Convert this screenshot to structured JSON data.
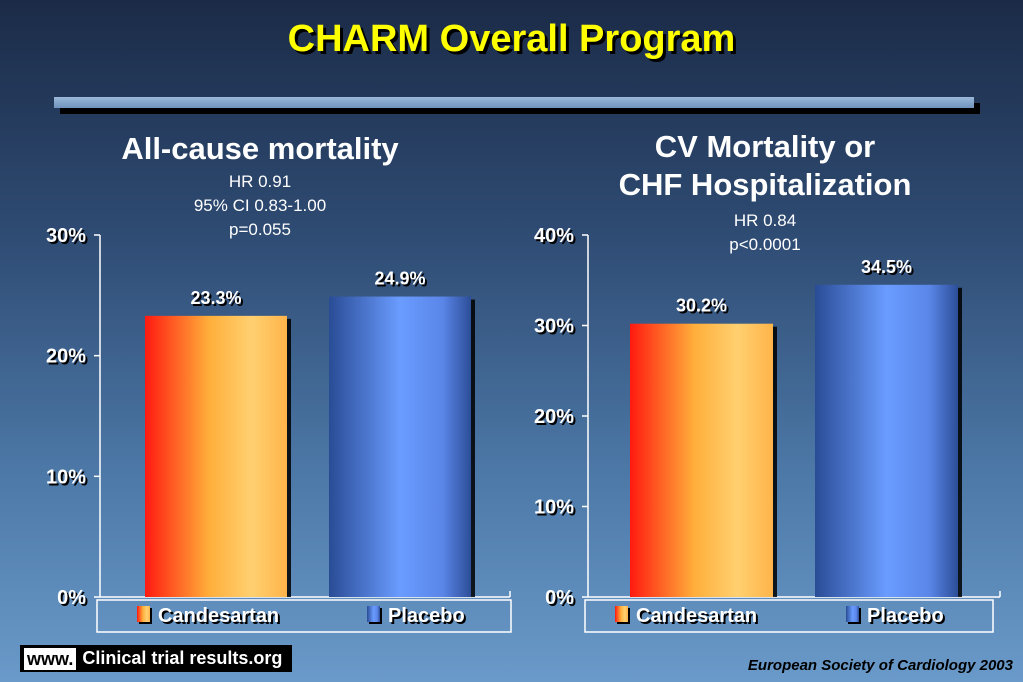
{
  "title": "CHARM Overall Program",
  "panels": [
    {
      "title_lines": [
        "All-cause mortality"
      ],
      "stats": [
        "HR 0.91",
        "95% CI 0.83-1.00",
        "p=0.055"
      ]
    },
    {
      "title_lines": [
        "CV Mortality or",
        "CHF Hospitalization"
      ],
      "stats": [
        "HR 0.84",
        "p<0.0001"
      ]
    }
  ],
  "chart_data": [
    {
      "type": "bar",
      "title": "All-cause mortality",
      "categories": [
        "Candesartan",
        "Placebo"
      ],
      "values": [
        23.3,
        24.9
      ],
      "value_labels": [
        "23.3%",
        "24.9%"
      ],
      "ylim": [
        0,
        30
      ],
      "yticks": [
        "0%",
        "10%",
        "20%",
        "30%"
      ],
      "legend": [
        "Candesartan",
        "Placebo"
      ],
      "legend_position": "bottom",
      "colors": [
        "#ff7a1a",
        "#4f7fe0"
      ]
    },
    {
      "type": "bar",
      "title": "CV Mortality or CHF Hospitalization",
      "categories": [
        "Candesartan",
        "Placebo"
      ],
      "values": [
        30.2,
        34.5
      ],
      "value_labels": [
        "30.2%",
        "34.5%"
      ],
      "ylim": [
        0,
        40
      ],
      "yticks": [
        "0%",
        "10%",
        "20%",
        "30%",
        "40%"
      ],
      "legend": [
        "Candesartan",
        "Placebo"
      ],
      "legend_position": "bottom",
      "colors": [
        "#ff7a1a",
        "#4f7fe0"
      ]
    }
  ],
  "footer": {
    "www": "www.",
    "site": "Clinical trial results.org",
    "credit": "European Society of Cardiology 2003"
  }
}
